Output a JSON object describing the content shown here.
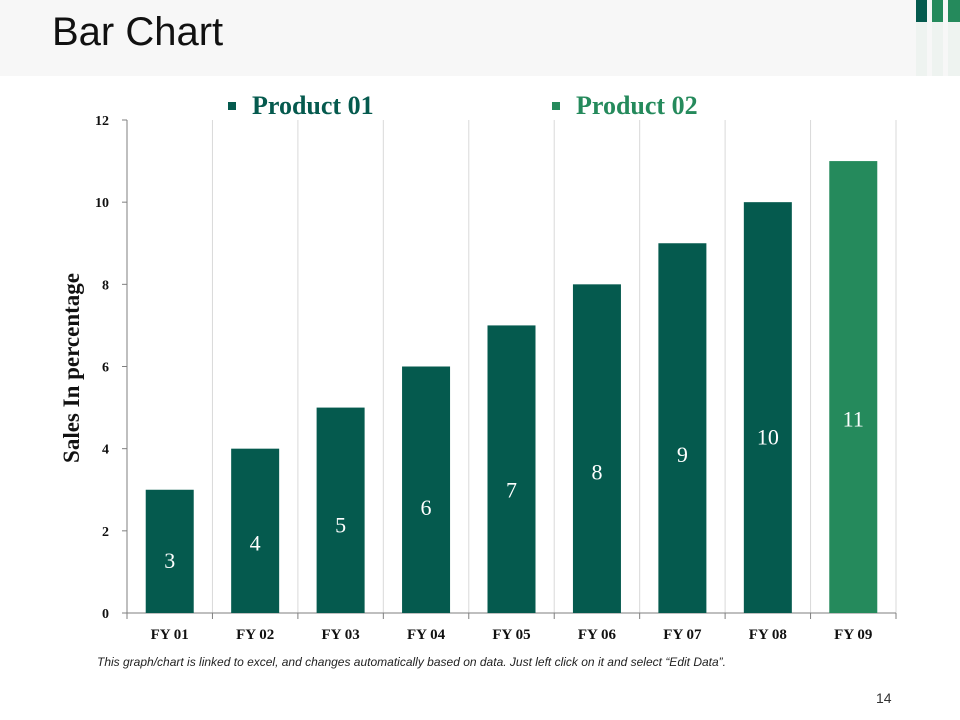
{
  "slide": {
    "title": "Bar Chart",
    "footnote": "This graph/chart is linked to excel, and changes automatically based on data.  Just left click on it and select “Edit Data”.",
    "page_number": "14"
  },
  "colors": {
    "product_01": "#055a4e",
    "product_02": "#258a5c",
    "grid": "#d9d9d9",
    "axis": "#7f7f7f"
  },
  "chart_data": {
    "type": "bar",
    "title": "",
    "xlabel": "",
    "ylabel": "Sales In percentage",
    "ylim": [
      0,
      12
    ],
    "yticks": [
      0,
      2,
      4,
      6,
      8,
      10,
      12
    ],
    "grid": "vertical",
    "legend_position": "top",
    "categories": [
      "FY 01",
      "FY 02",
      "FY 03",
      "FY 04",
      "FY 05",
      "FY 06",
      "FY 07",
      "FY 08",
      "FY 09"
    ],
    "series": [
      {
        "name": "Product 01",
        "values": [
          3,
          4,
          5,
          6,
          7,
          8,
          9,
          10,
          null
        ]
      },
      {
        "name": "Product 02",
        "values": [
          null,
          null,
          null,
          null,
          null,
          null,
          null,
          null,
          11
        ]
      }
    ],
    "data_labels": [
      "3",
      "4",
      "5",
      "6",
      "7",
      "8",
      "9",
      "10",
      "11"
    ]
  }
}
